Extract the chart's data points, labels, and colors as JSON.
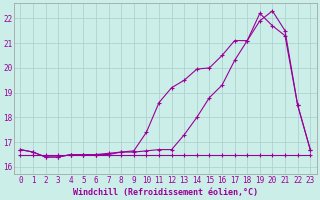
{
  "xlabel": "Windchill (Refroidissement éolien,°C)",
  "xlim": [
    -0.5,
    23.5
  ],
  "ylim": [
    15.7,
    22.6
  ],
  "xticks": [
    0,
    1,
    2,
    3,
    4,
    5,
    6,
    7,
    8,
    9,
    10,
    11,
    12,
    13,
    14,
    15,
    16,
    17,
    18,
    19,
    20,
    21,
    22,
    23
  ],
  "yticks": [
    16,
    17,
    18,
    19,
    20,
    21,
    22
  ],
  "background_color": "#cceee8",
  "grid_color": "#aacccc",
  "line_color": "#990099",
  "series1_x": [
    0,
    1,
    2,
    3,
    4,
    5,
    6,
    7,
    8,
    9,
    10,
    11,
    12,
    13,
    14,
    15,
    16,
    17,
    18,
    19,
    20,
    21,
    22,
    23
  ],
  "series1_y": [
    16.7,
    16.6,
    16.4,
    16.4,
    16.5,
    16.5,
    16.5,
    16.5,
    16.6,
    16.65,
    17.4,
    18.6,
    19.2,
    19.5,
    19.95,
    20.0,
    20.5,
    21.1,
    21.1,
    22.2,
    21.7,
    21.3,
    18.5,
    16.7
  ],
  "series2_x": [
    0,
    1,
    2,
    3,
    4,
    5,
    6,
    7,
    8,
    9,
    10,
    11,
    12,
    13,
    14,
    15,
    16,
    17,
    18,
    19,
    20,
    21,
    22,
    23
  ],
  "series2_y": [
    16.7,
    16.6,
    16.4,
    16.4,
    16.5,
    16.5,
    16.5,
    16.55,
    16.6,
    16.6,
    16.65,
    16.7,
    16.7,
    17.3,
    18.0,
    18.8,
    19.3,
    20.3,
    21.1,
    21.9,
    22.3,
    21.5,
    18.5,
    16.7
  ],
  "series3_x": [
    0,
    1,
    2,
    3,
    4,
    5,
    6,
    7,
    8,
    9,
    10,
    11,
    12,
    13,
    14,
    15,
    16,
    17,
    18,
    19,
    20,
    21,
    22,
    23
  ],
  "series3_y": [
    16.5,
    16.5,
    16.5,
    16.5,
    16.5,
    16.5,
    16.5,
    16.5,
    16.5,
    16.5,
    16.5,
    16.5,
    16.5,
    16.5,
    16.5,
    16.5,
    16.5,
    16.5,
    16.5,
    16.5,
    16.5,
    16.5,
    16.5,
    16.5
  ],
  "font_family": "monospace",
  "tick_fontsize": 5.5,
  "xlabel_fontsize": 6.0,
  "linewidth": 0.8,
  "marker_size": 3.0
}
